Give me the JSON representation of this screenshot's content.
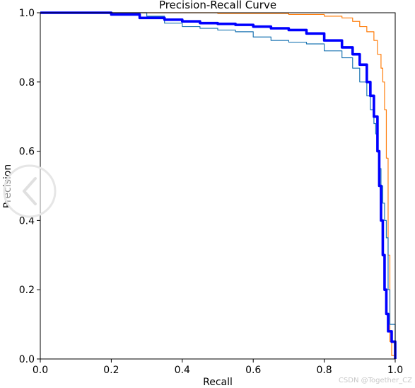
{
  "chart_data": {
    "type": "line",
    "title": "Precision-Recall Curve",
    "xlabel": "Recall",
    "ylabel": "Precision",
    "xlim": [
      0.0,
      1.0
    ],
    "ylim": [
      0.0,
      1.0
    ],
    "xticks": [
      "0.0",
      "0.2",
      "0.4",
      "0.6",
      "0.8",
      "1.0"
    ],
    "yticks": [
      "0.0",
      "0.2",
      "0.4",
      "0.6",
      "0.8",
      "1.0"
    ],
    "grid": false,
    "colors": {
      "orange": "#ff7f0e",
      "teal": "#1f77b4",
      "bold": "#0000ff"
    },
    "series": [
      {
        "color": "#ff7f0e",
        "width": "thin",
        "x": [
          0.0,
          0.3,
          0.5,
          0.7,
          0.8,
          0.85,
          0.88,
          0.9,
          0.92,
          0.94,
          0.95,
          0.96,
          0.965,
          0.97,
          0.975,
          0.98,
          0.985,
          0.99,
          1.0
        ],
        "y": [
          1.0,
          1.0,
          0.998,
          0.995,
          0.99,
          0.985,
          0.975,
          0.96,
          0.945,
          0.92,
          0.88,
          0.84,
          0.8,
          0.72,
          0.58,
          0.3,
          0.05,
          0.01,
          0.0
        ]
      },
      {
        "color": "#1f77b4",
        "width": "thin",
        "x": [
          0.0,
          0.3,
          0.35,
          0.4,
          0.45,
          0.5,
          0.55,
          0.6,
          0.65,
          0.7,
          0.75,
          0.8,
          0.85,
          0.88,
          0.9,
          0.92,
          0.93,
          0.94,
          0.945,
          0.95,
          0.955,
          0.96,
          0.965,
          0.97,
          0.975,
          0.98,
          0.985,
          1.0
        ],
        "y": [
          1.0,
          0.99,
          0.97,
          0.96,
          0.955,
          0.95,
          0.945,
          0.93,
          0.92,
          0.915,
          0.91,
          0.89,
          0.87,
          0.84,
          0.8,
          0.76,
          0.72,
          0.68,
          0.65,
          0.6,
          0.55,
          0.5,
          0.45,
          0.4,
          0.35,
          0.2,
          0.1,
          0.0
        ]
      },
      {
        "color": "#0000ff",
        "width": "bold",
        "x": [
          0.0,
          0.2,
          0.28,
          0.35,
          0.4,
          0.45,
          0.5,
          0.55,
          0.6,
          0.65,
          0.7,
          0.75,
          0.8,
          0.85,
          0.88,
          0.9,
          0.92,
          0.93,
          0.94,
          0.95,
          0.955,
          0.96,
          0.965,
          0.97,
          0.975,
          0.98,
          0.99,
          1.0
        ],
        "y": [
          1.0,
          0.995,
          0.985,
          0.98,
          0.975,
          0.97,
          0.968,
          0.965,
          0.96,
          0.955,
          0.95,
          0.94,
          0.92,
          0.9,
          0.88,
          0.85,
          0.8,
          0.76,
          0.7,
          0.6,
          0.5,
          0.4,
          0.3,
          0.2,
          0.13,
          0.08,
          0.05,
          0.0
        ]
      }
    ]
  },
  "watermark": {
    "text": "CSDN @Together_CZ"
  }
}
